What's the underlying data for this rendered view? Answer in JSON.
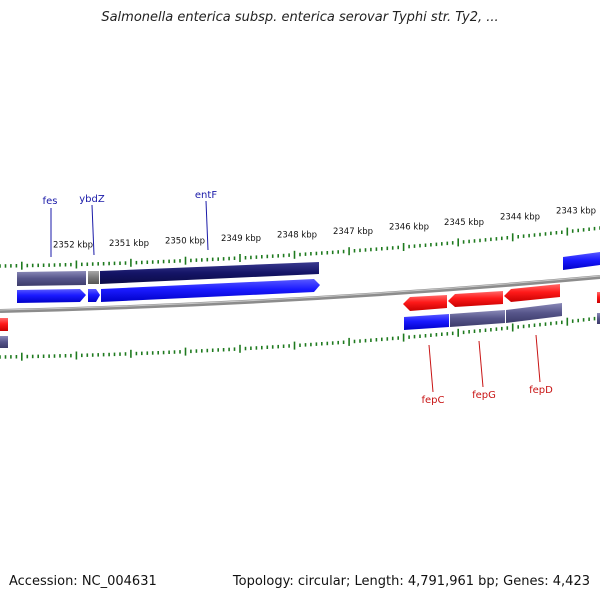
{
  "title": "Salmonella enterica subsp. enterica serovar Typhi str. Ty2, ...",
  "footer": {
    "accession": "Accession: NC_004631",
    "summary": "Topology: circular; Length: 4,791,961 bp; Genes: 4,423"
  },
  "scale_labels": [
    "2352 kbp",
    "2351 kbp",
    "2350 kbp",
    "2349 kbp",
    "2348 kbp",
    "2347 kbp",
    "2346 kbp",
    "2345 kbp",
    "2344 kbp",
    "2343 kbp"
  ],
  "genes": [
    {
      "name": "fes",
      "strand": "top",
      "color": "#1a1aa8"
    },
    {
      "name": "ybdZ",
      "strand": "top",
      "color": "#1a1aa8"
    },
    {
      "name": "entF",
      "strand": "top",
      "color": "#1a1aa8"
    },
    {
      "name": "fepC",
      "strand": "bottom",
      "color": "#c81414"
    },
    {
      "name": "fepG",
      "strand": "bottom",
      "color": "#c81414"
    },
    {
      "name": "fepD",
      "strand": "bottom",
      "color": "#c81414"
    }
  ],
  "colors": {
    "forward_gene": "#1a1aff",
    "reverse_gene": "#ff1a1a",
    "cds_dark": "#1a1a6e",
    "cds_muted": "#56558a",
    "backbone": "#8a8a8a",
    "ticks": "#1e7a1e"
  }
}
